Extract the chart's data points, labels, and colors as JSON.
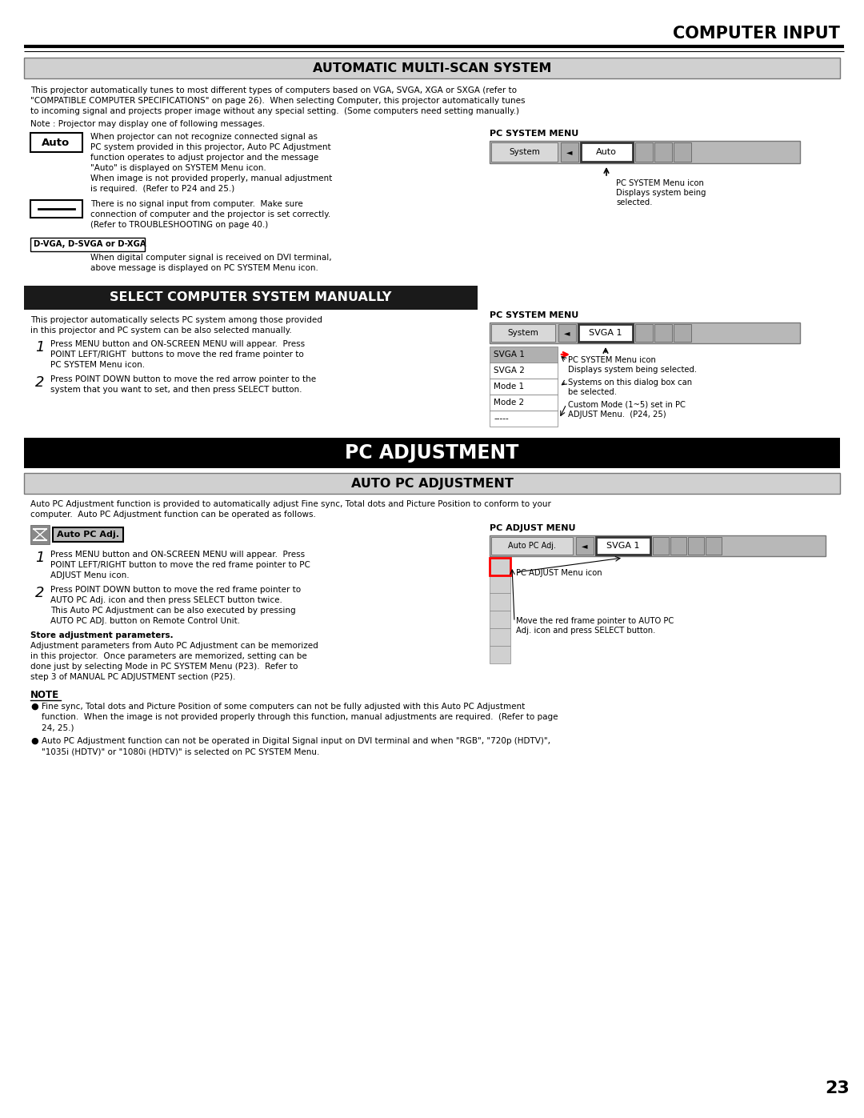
{
  "page_bg": "#ffffff",
  "page_number": "23",
  "header_title": "COMPUTER INPUT",
  "section1_title": "AUTOMATIC MULTI-SCAN SYSTEM",
  "section1_title_bg": "#d0d0d0",
  "section1_body1": "This projector automatically tunes to most different types of computers based on VGA, SVGA, XGA or SXGA (refer to\n\"COMPATIBLE COMPUTER SPECIFICATIONS\" on page 26).  When selecting Computer, this projector automatically tunes\nto incoming signal and projects proper image without any special setting.  (Some computers need setting manually.)",
  "section1_note": "Note : Projector may display one of following messages.",
  "auto_box_text": "Auto",
  "auto_desc": "When projector can not recognize connected signal as\nPC system provided in this projector, Auto PC Adjustment\nfunction operates to adjust projector and the message\n\"Auto\" is displayed on SYSTEM Menu icon.\nWhen image is not provided properly, manual adjustment\nis required.  (Refer to P24 and 25.)",
  "dash_desc": "There is no signal input from computer.  Make sure\nconnection of computer and the projector is set correctly.\n(Refer to TROUBLESHOOTING on page 40.)",
  "dvga_label": "D-VGA, D-SVGA or D-XGA",
  "dvga_desc": "When digital computer signal is received on DVI terminal,\nabove message is displayed on PC SYSTEM Menu icon.",
  "pcsys_menu1_label": "PC SYSTEM MENU",
  "pcsys_menu1_note1": "PC SYSTEM Menu icon",
  "pcsys_menu1_note2": "Displays system being\nselected.",
  "section2_title": "SELECT COMPUTER SYSTEM MANUALLY",
  "section2_title_bg": "#1a1a1a",
  "section2_title_color": "#ffffff",
  "section2_body": "This projector automatically selects PC system among those provided\nin this projector and PC system can be also selected manually.",
  "step1_text": "Press MENU button and ON-SCREEN MENU will appear.  Press\nPOINT LEFT/RIGHT  buttons to move the red frame pointer to\nPC SYSTEM Menu icon.",
  "step2_text": "Press POINT DOWN button to move the red arrow pointer to the\nsystem that you want to set, and then press SELECT button.",
  "pcsys_menu2_label": "PC SYSTEM MENU",
  "pcsys_menu2_note1": "PC SYSTEM Menu icon\nDisplays system being selected.",
  "pcsys_menu2_note2": "Systems on this dialog box can\nbe selected.",
  "pcsys_menu2_note3": "Custom Mode (1~5) set in PC\nADJUST Menu.  (P24, 25)",
  "section3_title": "PC ADJUSTMENT",
  "section3_title_bg": "#000000",
  "section3_title_color": "#ffffff",
  "section4_title": "AUTO PC ADJUSTMENT",
  "section4_title_bg": "#d0d0d0",
  "section4_body": "Auto PC Adjustment function is provided to automatically adjust Fine sync, Total dots and Picture Position to conform to your\ncomputer.  Auto PC Adjustment function can be operated as follows.",
  "autoadj_label": "Auto PC Adj.",
  "autoadj_step1": "Press MENU button and ON-SCREEN MENU will appear.  Press\nPOINT LEFT/RIGHT button to move the red frame pointer to PC\nADJUST Menu icon.",
  "autoadj_step2": "Press POINT DOWN button to move the red frame pointer to\nAUTO PC Adj. icon and then press SELECT button twice.\nThis Auto PC Adjustment can be also executed by pressing\nAUTO PC ADJ. button on Remote Control Unit.",
  "store_title": "Store adjustment parameters.",
  "store_body": "Adjustment parameters from Auto PC Adjustment can be memorized\nin this projector.  Once parameters are memorized, setting can be\ndone just by selecting Mode in PC SYSTEM Menu (P23).  Refer to\nstep 3 of MANUAL PC ADJUSTMENT section (P25).",
  "pcadj_menu_label": "PC ADJUST MENU",
  "pcadj_menu_note1": "PC ADJUST Menu icon",
  "pcadj_menu_note2": "Move the red frame pointer to AUTO PC\nAdj. icon and press SELECT button.",
  "note_title": "NOTE",
  "note1": "Fine sync, Total dots and Picture Position of some computers can not be fully adjusted with this Auto PC Adjustment\nfunction.  When the image is not provided properly through this function, manual adjustments are required.  (Refer to page\n24, 25.)",
  "note2": "Auto PC Adjustment function can not be operated in Digital Signal input on DVI terminal and when \"RGB\", \"720p (HDTV)\",\n\"1035i (HDTV)\" or \"1080i (HDTV)\" is selected on PC SYSTEM Menu."
}
